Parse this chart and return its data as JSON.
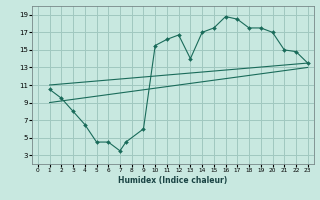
{
  "xlabel": "Humidex (Indice chaleur)",
  "bg_color": "#c8e8e0",
  "grid_color": "#a0c8c0",
  "line_color": "#1a6b5a",
  "xlim": [
    -0.5,
    23.5
  ],
  "ylim": [
    2,
    20
  ],
  "xticks": [
    0,
    1,
    2,
    3,
    4,
    5,
    6,
    7,
    8,
    9,
    10,
    11,
    12,
    13,
    14,
    15,
    16,
    17,
    18,
    19,
    20,
    21,
    22,
    23
  ],
  "yticks": [
    3,
    5,
    7,
    9,
    11,
    13,
    15,
    17,
    19
  ],
  "line1_x": [
    1,
    2,
    3,
    4,
    5,
    6,
    7,
    7.5,
    9,
    10,
    11,
    12,
    13,
    14,
    15,
    16,
    17,
    18,
    19,
    20,
    21,
    22,
    23
  ],
  "line1_y": [
    10.5,
    9.5,
    8.0,
    6.5,
    4.5,
    4.5,
    3.5,
    4.5,
    6.0,
    15.5,
    16.2,
    16.7,
    14.0,
    17.0,
    17.5,
    18.8,
    18.5,
    17.5,
    17.5,
    17.0,
    15.0,
    14.8,
    13.5
  ],
  "line2_x": [
    1,
    23
  ],
  "line2_y": [
    11.0,
    13.5
  ],
  "line3_x": [
    1,
    23
  ],
  "line3_y": [
    9.0,
    13.0
  ]
}
